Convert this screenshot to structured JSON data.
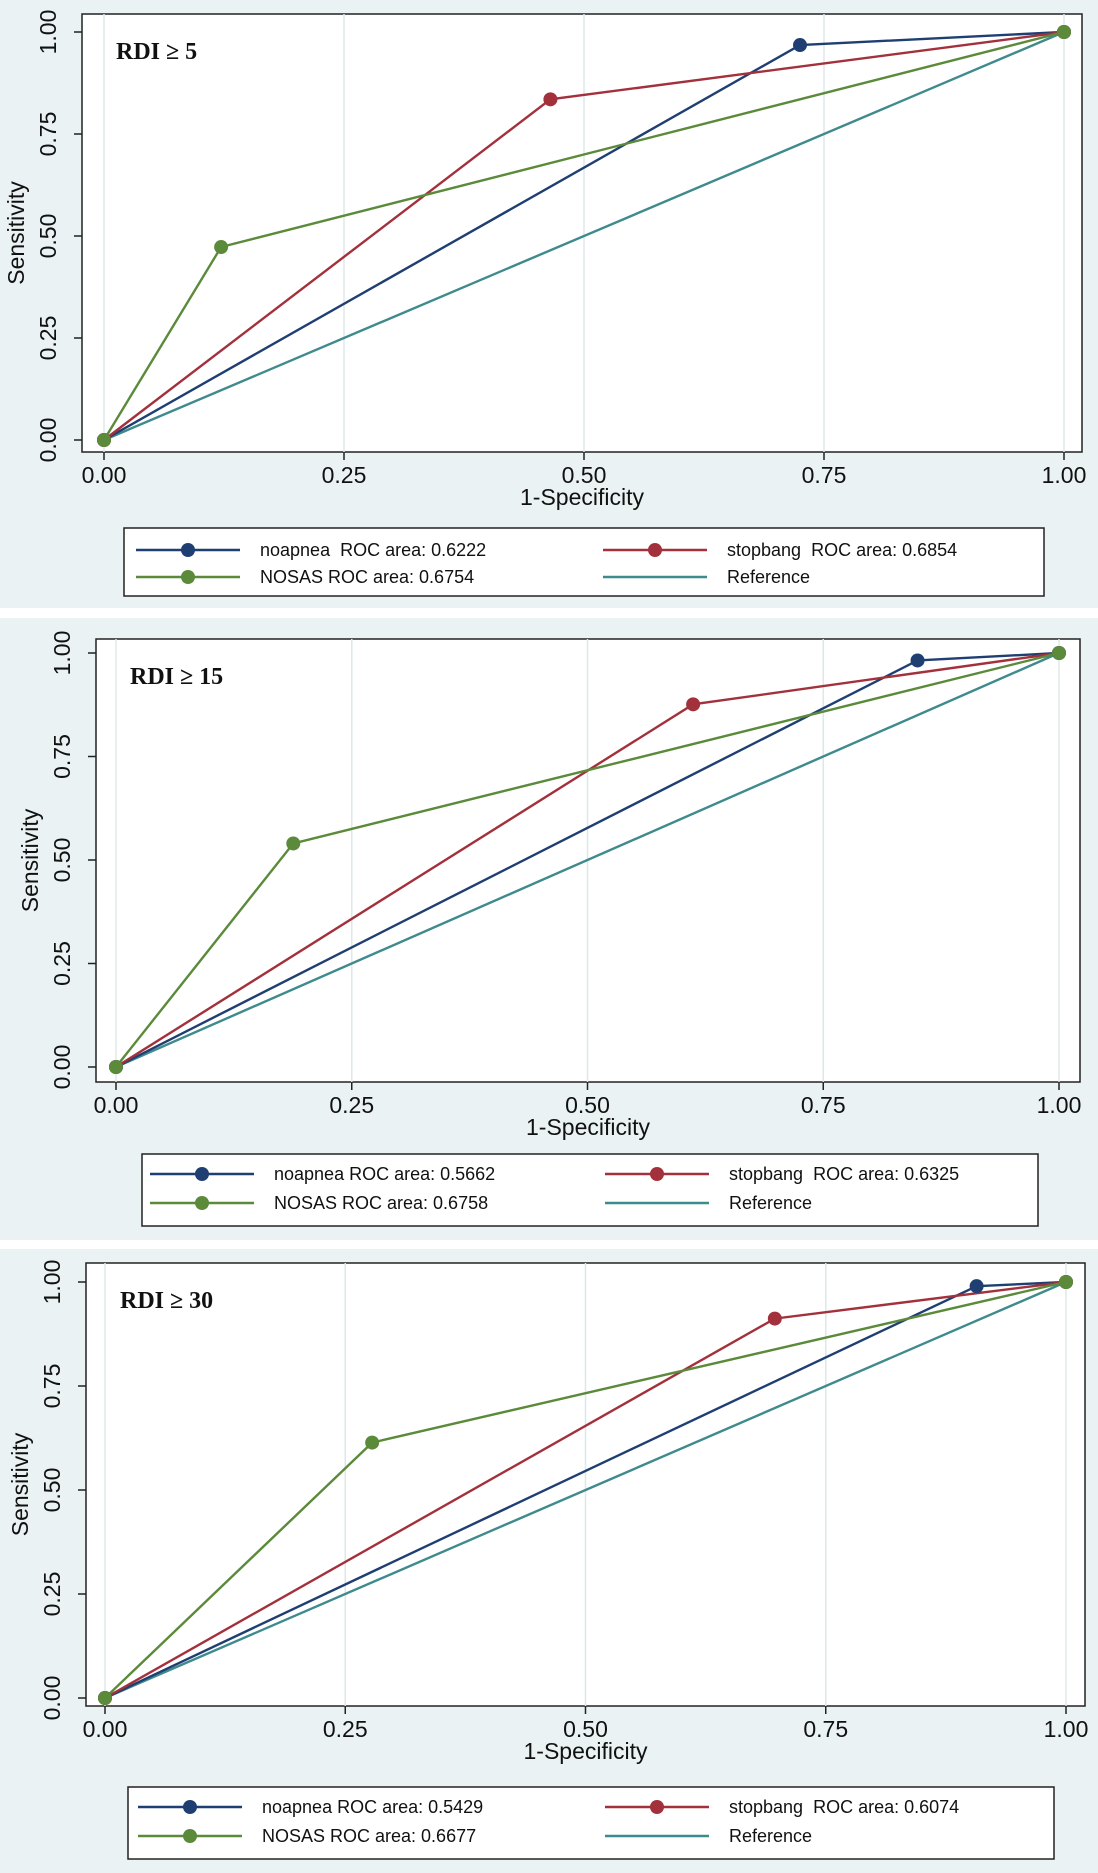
{
  "chart_data": [
    {
      "type": "line",
      "inset_label": "RDI ≥ 5",
      "xlabel": "1-Specificity",
      "ylabel": "Sensitivity",
      "xlim": [
        0,
        1
      ],
      "ylim": [
        0,
        1
      ],
      "x_ticks": [
        "0.00",
        "0.25",
        "0.50",
        "0.75",
        "1.00"
      ],
      "y_ticks": [
        "0.00",
        "0.25",
        "0.50",
        "0.75",
        "1.00"
      ],
      "series": [
        {
          "name": "noapnea",
          "legend": "noapnea  ROC area: 0.6222",
          "color": "#1f3f73",
          "markers": true,
          "points": [
            [
              0,
              0
            ],
            [
              0.725,
              0.968
            ],
            [
              1,
              1
            ]
          ]
        },
        {
          "name": "stopbang",
          "legend": "stopbang  ROC area: 0.6854",
          "color": "#a3313c",
          "markers": true,
          "points": [
            [
              0,
              0
            ],
            [
              0.465,
              0.835
            ],
            [
              1,
              1
            ]
          ]
        },
        {
          "name": "NOSAS",
          "legend": "NOSAS ROC area: 0.6754",
          "color": "#5b8a3a",
          "markers": true,
          "points": [
            [
              0,
              0
            ],
            [
              0.122,
              0.473
            ],
            [
              1,
              1
            ]
          ]
        },
        {
          "name": "Reference",
          "legend": "Reference",
          "color": "#3e8a8d",
          "markers": false,
          "points": [
            [
              0,
              0
            ],
            [
              1,
              1
            ]
          ]
        }
      ]
    },
    {
      "type": "line",
      "inset_label": "RDI ≥ 15",
      "xlabel": "1-Specificity",
      "ylabel": "Sensitivity",
      "xlim": [
        0,
        1
      ],
      "ylim": [
        0,
        1
      ],
      "x_ticks": [
        "0.00",
        "0.25",
        "0.50",
        "0.75",
        "1.00"
      ],
      "y_ticks": [
        "0.00",
        "0.25",
        "0.50",
        "0.75",
        "1.00"
      ],
      "series": [
        {
          "name": "noapnea",
          "legend": "noapnea ROC area: 0.5662",
          "color": "#1f3f73",
          "markers": true,
          "points": [
            [
              0,
              0
            ],
            [
              0.85,
              0.982
            ],
            [
              1,
              1
            ]
          ]
        },
        {
          "name": "stopbang",
          "legend": "stopbang  ROC area: 0.6325",
          "color": "#a3313c",
          "markers": true,
          "points": [
            [
              0,
              0
            ],
            [
              0.612,
              0.876
            ],
            [
              1,
              1
            ]
          ]
        },
        {
          "name": "NOSAS",
          "legend": "NOSAS ROC area: 0.6758",
          "color": "#5b8a3a",
          "markers": true,
          "points": [
            [
              0,
              0
            ],
            [
              0.188,
              0.54
            ],
            [
              1,
              1
            ]
          ]
        },
        {
          "name": "Reference",
          "legend": "Reference",
          "color": "#3e8a8d",
          "markers": false,
          "points": [
            [
              0,
              0
            ],
            [
              1,
              1
            ]
          ]
        }
      ]
    },
    {
      "type": "line",
      "inset_label": "RDI ≥ 30",
      "xlabel": "1-Specificity",
      "ylabel": "Sensitivity",
      "xlim": [
        0,
        1
      ],
      "ylim": [
        0,
        1
      ],
      "x_ticks": [
        "0.00",
        "0.25",
        "0.50",
        "0.75",
        "1.00"
      ],
      "y_ticks": [
        "0.00",
        "0.25",
        "0.50",
        "0.75",
        "1.00"
      ],
      "series": [
        {
          "name": "noapnea",
          "legend": "noapnea ROC area: 0.5429",
          "color": "#1f3f73",
          "markers": true,
          "points": [
            [
              0,
              0
            ],
            [
              0.907,
              0.99
            ],
            [
              1,
              1
            ]
          ]
        },
        {
          "name": "stopbang",
          "legend": "stopbang  ROC area: 0.6074",
          "color": "#a3313c",
          "markers": true,
          "points": [
            [
              0,
              0
            ],
            [
              0.697,
              0.912
            ],
            [
              1,
              1
            ]
          ]
        },
        {
          "name": "NOSAS",
          "legend": "NOSAS ROC area: 0.6677",
          "color": "#5b8a3a",
          "markers": true,
          "points": [
            [
              0,
              0
            ],
            [
              0.278,
              0.614
            ],
            [
              1,
              1
            ]
          ]
        },
        {
          "name": "Reference",
          "legend": "Reference",
          "color": "#3e8a8d",
          "markers": false,
          "points": [
            [
              0,
              0
            ],
            [
              1,
              1
            ]
          ]
        }
      ]
    }
  ]
}
